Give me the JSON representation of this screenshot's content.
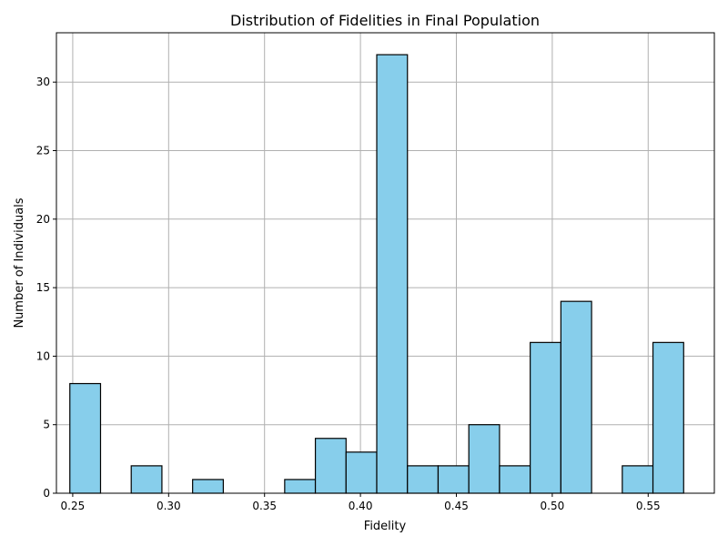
{
  "chart_data": {
    "type": "bar",
    "title": "Distribution of Fidelities in Final Population",
    "xlabel": "Fidelity",
    "ylabel": "Number of Individuals",
    "bar_color": "#87ceeb",
    "edge_color": "#000000",
    "grid": true,
    "xlim": [
      0.2415,
      0.5845
    ],
    "ylim": [
      0,
      33.6
    ],
    "xticks": [
      0.25,
      0.3,
      0.35,
      0.4,
      0.45,
      0.5,
      0.55
    ],
    "xtick_labels": [
      "0.25",
      "0.30",
      "0.35",
      "0.40",
      "0.45",
      "0.50",
      "0.55"
    ],
    "yticks": [
      0,
      5,
      10,
      15,
      20,
      25,
      30
    ],
    "ytick_labels": [
      "0",
      "5",
      "10",
      "15",
      "20",
      "25",
      "30"
    ],
    "bins": [
      {
        "x0": 0.2485,
        "x1": 0.2645,
        "count": 8
      },
      {
        "x0": 0.2645,
        "x1": 0.2805,
        "count": 0
      },
      {
        "x0": 0.2805,
        "x1": 0.2965,
        "count": 2
      },
      {
        "x0": 0.2965,
        "x1": 0.3125,
        "count": 0
      },
      {
        "x0": 0.3125,
        "x1": 0.3285,
        "count": 1
      },
      {
        "x0": 0.3285,
        "x1": 0.3445,
        "count": 0
      },
      {
        "x0": 0.3445,
        "x1": 0.3605,
        "count": 0
      },
      {
        "x0": 0.3605,
        "x1": 0.3765,
        "count": 1
      },
      {
        "x0": 0.3765,
        "x1": 0.3925,
        "count": 4
      },
      {
        "x0": 0.3925,
        "x1": 0.4085,
        "count": 3
      },
      {
        "x0": 0.4085,
        "x1": 0.4245,
        "count": 32
      },
      {
        "x0": 0.4245,
        "x1": 0.4405,
        "count": 2
      },
      {
        "x0": 0.4405,
        "x1": 0.4565,
        "count": 2
      },
      {
        "x0": 0.4565,
        "x1": 0.4725,
        "count": 5
      },
      {
        "x0": 0.4725,
        "x1": 0.4885,
        "count": 2
      },
      {
        "x0": 0.4885,
        "x1": 0.5045,
        "count": 11
      },
      {
        "x0": 0.5045,
        "x1": 0.5205,
        "count": 14
      },
      {
        "x0": 0.5205,
        "x1": 0.5365,
        "count": 0
      },
      {
        "x0": 0.5365,
        "x1": 0.5525,
        "count": 2
      },
      {
        "x0": 0.5525,
        "x1": 0.5685,
        "count": 11
      }
    ]
  }
}
